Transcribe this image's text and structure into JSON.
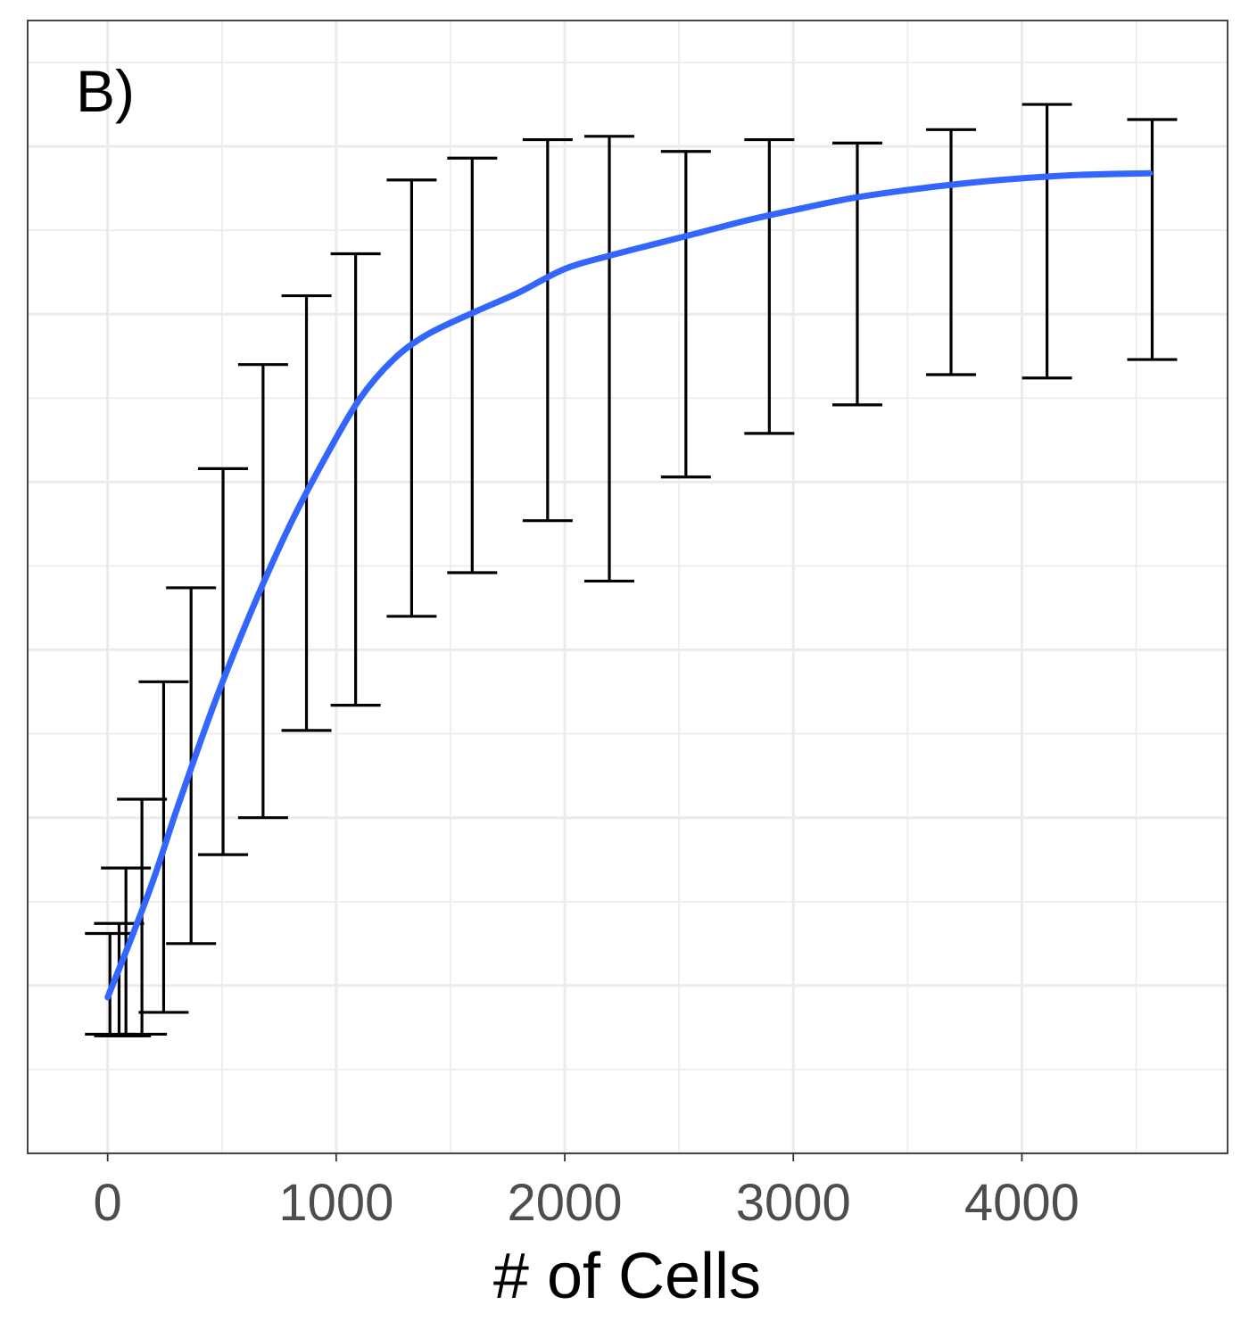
{
  "chart_data": {
    "type": "line",
    "panel_tag": "B)",
    "xlabel": "# of Cells",
    "ylabel": "",
    "xlim": [
      -350,
      4900
    ],
    "ylim": [
      0,
      6.75
    ],
    "x_ticks": [
      0,
      1000,
      2000,
      3000,
      4000
    ],
    "y_ticks": [],
    "grid": true,
    "colors": {
      "trend": "#3366ff",
      "errorbar": "#000000"
    },
    "series": [
      {
        "type": "errorbar",
        "points": [
          {
            "x": 10,
            "lower": 0.71,
            "upper": 1.31
          },
          {
            "x": 50,
            "lower": 0.7,
            "upper": 1.37
          },
          {
            "x": 80,
            "lower": 0.7,
            "upper": 1.7
          },
          {
            "x": 150,
            "lower": 0.71,
            "upper": 2.11
          },
          {
            "x": 245,
            "lower": 0.84,
            "upper": 2.81
          },
          {
            "x": 365,
            "lower": 1.25,
            "upper": 3.37
          },
          {
            "x": 505,
            "lower": 1.78,
            "upper": 4.08
          },
          {
            "x": 680,
            "lower": 2.0,
            "upper": 4.7
          },
          {
            "x": 870,
            "lower": 2.52,
            "upper": 5.11
          },
          {
            "x": 1085,
            "lower": 2.67,
            "upper": 5.36
          },
          {
            "x": 1330,
            "lower": 3.2,
            "upper": 5.8
          },
          {
            "x": 1595,
            "lower": 3.46,
            "upper": 5.93
          },
          {
            "x": 1925,
            "lower": 3.77,
            "upper": 6.04
          },
          {
            "x": 2195,
            "lower": 3.41,
            "upper": 6.06
          },
          {
            "x": 2530,
            "lower": 4.03,
            "upper": 5.97
          },
          {
            "x": 2895,
            "lower": 4.29,
            "upper": 6.04
          },
          {
            "x": 3280,
            "lower": 4.46,
            "upper": 6.02
          },
          {
            "x": 3690,
            "lower": 4.64,
            "upper": 6.1
          },
          {
            "x": 4110,
            "lower": 4.62,
            "upper": 6.25
          },
          {
            "x": 4570,
            "lower": 4.73,
            "upper": 6.16
          }
        ]
      },
      {
        "type": "smooth",
        "x": [
          0,
          100,
          200,
          300,
          400,
          500,
          650,
          800,
          950,
          1100,
          1250,
          1400,
          1600,
          1800,
          2000,
          2200,
          2400,
          2600,
          2800,
          3000,
          3250,
          3500,
          3750,
          4000,
          4250,
          4560
        ],
        "y": [
          0.93,
          1.27,
          1.63,
          2.04,
          2.43,
          2.8,
          3.3,
          3.75,
          4.14,
          4.49,
          4.73,
          4.88,
          5.01,
          5.13,
          5.27,
          5.35,
          5.42,
          5.49,
          5.56,
          5.62,
          5.69,
          5.74,
          5.78,
          5.81,
          5.83,
          5.84
        ]
      }
    ]
  }
}
